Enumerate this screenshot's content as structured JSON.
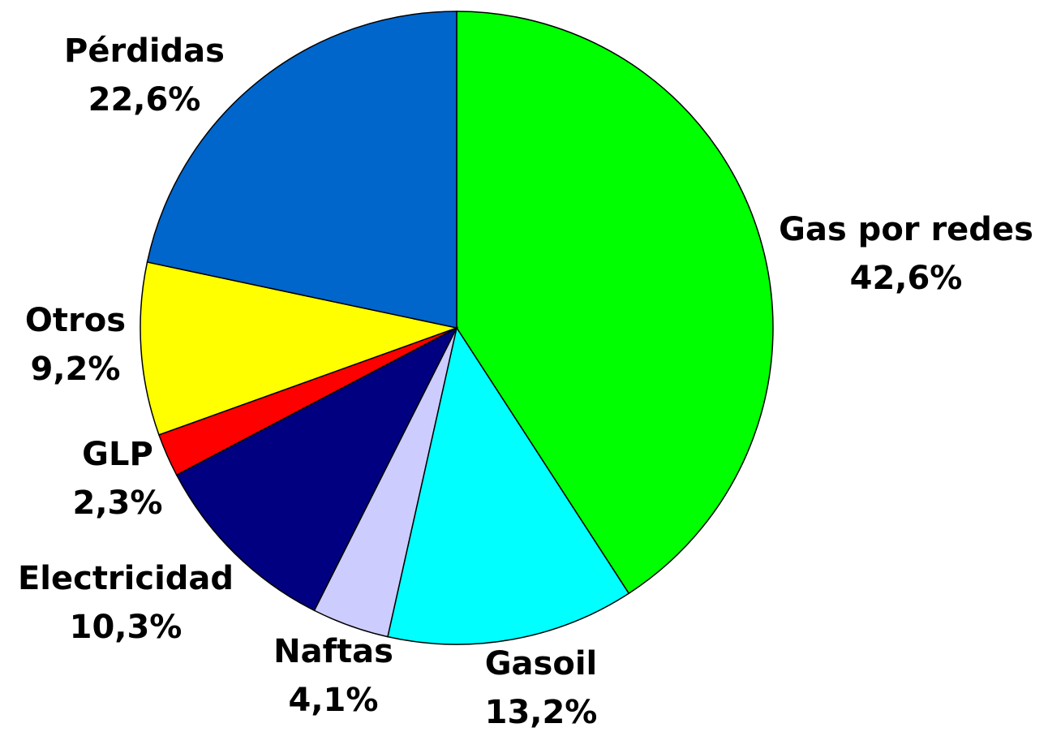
{
  "chart_data": {
    "type": "pie",
    "categories": [
      "Gas por redes",
      "Gasoil",
      "Naftas",
      "Electricidad",
      "GLP",
      "Otros",
      "Pérdidas"
    ],
    "values": [
      42.6,
      13.2,
      4.1,
      10.3,
      2.3,
      9.2,
      22.6
    ],
    "value_labels": [
      "42,6%",
      "13,2%",
      "4,1%",
      "10,3%",
      "2,3%",
      "9,2%",
      "22,6%"
    ],
    "colors": [
      "#00ff00",
      "#00ffff",
      "#ccccff",
      "#000080",
      "#ff0000",
      "#ffff00",
      "#0066cc"
    ]
  }
}
